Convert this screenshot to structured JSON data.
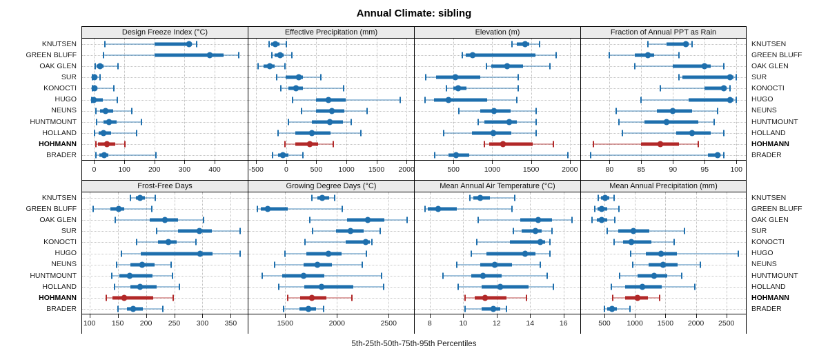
{
  "title": "Annual Climate: sibling",
  "x_axis_label": "5th-25th-50th-75th-95th Percentiles",
  "percentile_labels": [
    "5th",
    "25th",
    "50th",
    "75th",
    "95th"
  ],
  "highlighted_site": "HOHMANN",
  "colors": {
    "series": "#1E6FAD",
    "series_light": "rgba(30,111,173,0.42)",
    "highlight": "#B22828",
    "highlight_light": "rgba(178,40,40,0.42)",
    "strip_bg": "#ebebeb",
    "grid": "#bdbdbd"
  },
  "chart_data": {
    "type": "scatter",
    "layout": "trellis 2 rows x 4 columns, horizontal percentile range plots (5th-25th-50th-75th-95th) per site",
    "title": "Annual Climate: sibling",
    "xlabel": "5th-25th-50th-75th-95th Percentiles",
    "legend_position": "none",
    "grid": "dotted",
    "sites": [
      "KNUTSEN",
      "GREEN BLUFF",
      "OAK GLEN",
      "SUR",
      "KONOCTI",
      "HUGO",
      "NEUNS",
      "HUNTMOUNT",
      "HOLLAND",
      "HOHMANN",
      "BRADER"
    ],
    "highlighted_site": "HOHMANN",
    "panels": [
      {
        "title": "Design Freeze Index (°C)",
        "row": 1,
        "xlim": [
          -40,
          510
        ],
        "ticks": [
          0,
          100,
          200,
          300,
          400
        ],
        "data": [
          [
            35,
            200,
            315,
            325,
            340
          ],
          [
            30,
            200,
            385,
            430,
            480
          ],
          [
            3,
            8,
            19,
            32,
            80
          ],
          [
            -5,
            -2,
            2,
            8,
            20
          ],
          [
            -5,
            -2,
            2,
            10,
            65
          ],
          [
            -8,
            -4,
            0,
            28,
            78
          ],
          [
            5,
            20,
            38,
            64,
            125
          ],
          [
            8,
            30,
            50,
            75,
            158
          ],
          [
            2,
            15,
            30,
            56,
            140
          ],
          [
            5,
            13,
            43,
            70,
            102
          ],
          [
            5,
            17,
            34,
            47,
            205
          ]
        ]
      },
      {
        "title": "Effective Precipitation (mm)",
        "row": 1,
        "xlim": [
          -630,
          2125
        ],
        "ticks": [
          -500,
          0,
          500,
          1000,
          1500,
          2000
        ],
        "data": [
          [
            -285,
            -250,
            -185,
            -115,
            0
          ],
          [
            -240,
            -190,
            -105,
            -40,
            90
          ],
          [
            -475,
            -375,
            -275,
            -190,
            -20
          ],
          [
            -155,
            -5,
            210,
            275,
            575
          ],
          [
            -95,
            35,
            160,
            275,
            950
          ],
          [
            110,
            500,
            700,
            985,
            1900
          ],
          [
            255,
            500,
            760,
            965,
            1340
          ],
          [
            35,
            425,
            725,
            945,
            1080
          ],
          [
            -135,
            145,
            425,
            740,
            1245
          ],
          [
            -20,
            145,
            395,
            535,
            780
          ],
          [
            -230,
            -135,
            -60,
            35,
            275
          ]
        ]
      },
      {
        "title": "Elevation (m)",
        "row": 1,
        "xlim": [
          0,
          2135
        ],
        "ticks": [
          500,
          1000,
          1500,
          2000
        ],
        "data": [
          [
            1255,
            1320,
            1425,
            1480,
            1610
          ],
          [
            610,
            655,
            750,
            1560,
            1820
          ],
          [
            925,
            990,
            1190,
            1395,
            1745
          ],
          [
            145,
            275,
            525,
            845,
            1330
          ],
          [
            405,
            500,
            560,
            665,
            1330
          ],
          [
            130,
            250,
            435,
            930,
            1320
          ],
          [
            565,
            845,
            1025,
            1235,
            1570
          ],
          [
            815,
            900,
            1215,
            1320,
            1570
          ],
          [
            370,
            740,
            1010,
            1245,
            1570
          ],
          [
            895,
            960,
            1140,
            1525,
            1790
          ],
          [
            255,
            435,
            530,
            700,
            1975
          ]
        ]
      },
      {
        "title": "Fraction of Annual PPT as Rain",
        "row": 1,
        "xlim": [
          75.5,
          101.5
        ],
        "ticks": [
          80,
          85,
          90,
          95,
          100
        ],
        "data": [
          [
            86,
            89,
            92,
            92.5,
            93
          ],
          [
            80,
            84,
            86,
            87,
            91
          ],
          [
            84,
            90,
            95,
            96,
            98
          ],
          [
            91,
            91.5,
            99,
            99.5,
            100
          ],
          [
            88,
            95,
            98,
            98.5,
            99
          ],
          [
            85,
            92.5,
            99,
            99.5,
            100
          ],
          [
            81,
            87.5,
            90,
            93,
            97
          ],
          [
            81.5,
            85.5,
            89,
            94,
            96.5
          ],
          [
            82,
            90.5,
            93,
            96,
            98
          ],
          [
            77.5,
            85,
            88,
            91,
            94
          ],
          [
            77,
            95.5,
            97,
            97.5,
            98
          ]
        ]
      },
      {
        "title": "Frost-Free Days",
        "row": 2,
        "xlim": [
          87,
          380
        ],
        "ticks": [
          100,
          150,
          200,
          250,
          300,
          350
        ],
        "data": [
          [
            173,
            182,
            190,
            198,
            216
          ],
          [
            106,
            137,
            152,
            161,
            210
          ],
          [
            146,
            207,
            234,
            257,
            302
          ],
          [
            219,
            257,
            295,
            317,
            366
          ],
          [
            184,
            221,
            240,
            254,
            288
          ],
          [
            157,
            191,
            296,
            318,
            366
          ],
          [
            148,
            172,
            193,
            215,
            245
          ],
          [
            139,
            153,
            171,
            211,
            247
          ],
          [
            144,
            172,
            189,
            219,
            259
          ],
          [
            130,
            141,
            162,
            213,
            248
          ],
          [
            151,
            166,
            177,
            194,
            230
          ]
        ]
      },
      {
        "title": "Growing Degree Days (°C)",
        "row": 2,
        "xlim": [
          1145,
          2745
        ],
        "ticks": [
          1500,
          2000,
          2500
        ],
        "data": [
          [
            1755,
            1810,
            1860,
            1925,
            1980
          ],
          [
            1230,
            1265,
            1330,
            1525,
            2050
          ],
          [
            1740,
            2095,
            2300,
            2455,
            2675
          ],
          [
            1765,
            1990,
            2130,
            2260,
            2415
          ],
          [
            1690,
            2085,
            2280,
            2315,
            2340
          ],
          [
            1495,
            1705,
            1915,
            2045,
            2285
          ],
          [
            1395,
            1675,
            1810,
            1950,
            2245
          ],
          [
            1275,
            1470,
            1675,
            1880,
            2430
          ],
          [
            1435,
            1685,
            1850,
            2160,
            2450
          ],
          [
            1525,
            1645,
            1760,
            1900,
            2145
          ],
          [
            1485,
            1635,
            1725,
            1795,
            1870
          ]
        ]
      },
      {
        "title": "Mean Annual Air Temperature (°C)",
        "row": 2,
        "xlim": [
          7.1,
          17.0
        ],
        "ticks": [
          8,
          10,
          12,
          14,
          16
        ],
        "data": [
          [
            10.4,
            10.6,
            11.0,
            11.6,
            13.1
          ],
          [
            7.7,
            7.9,
            8.5,
            9.6,
            12.9
          ],
          [
            10.9,
            13.4,
            14.5,
            15.3,
            16.5
          ],
          [
            13.0,
            13.5,
            14.3,
            14.7,
            15.3
          ],
          [
            10.8,
            12.8,
            14.6,
            14.9,
            15.2
          ],
          [
            10.5,
            11.4,
            13.7,
            14.3,
            15.2
          ],
          [
            9.6,
            11.0,
            11.9,
            12.9,
            14.6
          ],
          [
            8.8,
            10.5,
            11.2,
            12.3,
            15.0
          ],
          [
            9.7,
            11.1,
            12.2,
            13.9,
            15.4
          ],
          [
            10.1,
            10.7,
            11.3,
            12.6,
            13.8
          ],
          [
            10.1,
            11.1,
            11.8,
            12.2,
            12.6
          ]
        ]
      },
      {
        "title": "Mean Annual Precipitation (mm)",
        "row": 2,
        "xlim": [
          115,
          2820
        ],
        "ticks": [
          500,
          1000,
          1500,
          2000,
          2500
        ],
        "data": [
          [
            400,
            445,
            510,
            575,
            660
          ],
          [
            340,
            390,
            460,
            550,
            735
          ],
          [
            295,
            370,
            450,
            540,
            675
          ],
          [
            550,
            725,
            970,
            1235,
            1815
          ],
          [
            660,
            800,
            940,
            1270,
            1645
          ],
          [
            925,
            1175,
            1430,
            1685,
            2690
          ],
          [
            960,
            1225,
            1460,
            1700,
            2070
          ],
          [
            750,
            1040,
            1315,
            1535,
            1765
          ],
          [
            615,
            840,
            1120,
            1440,
            1985
          ],
          [
            630,
            840,
            1045,
            1215,
            1400
          ],
          [
            500,
            550,
            625,
            705,
            915
          ]
        ]
      }
    ]
  }
}
